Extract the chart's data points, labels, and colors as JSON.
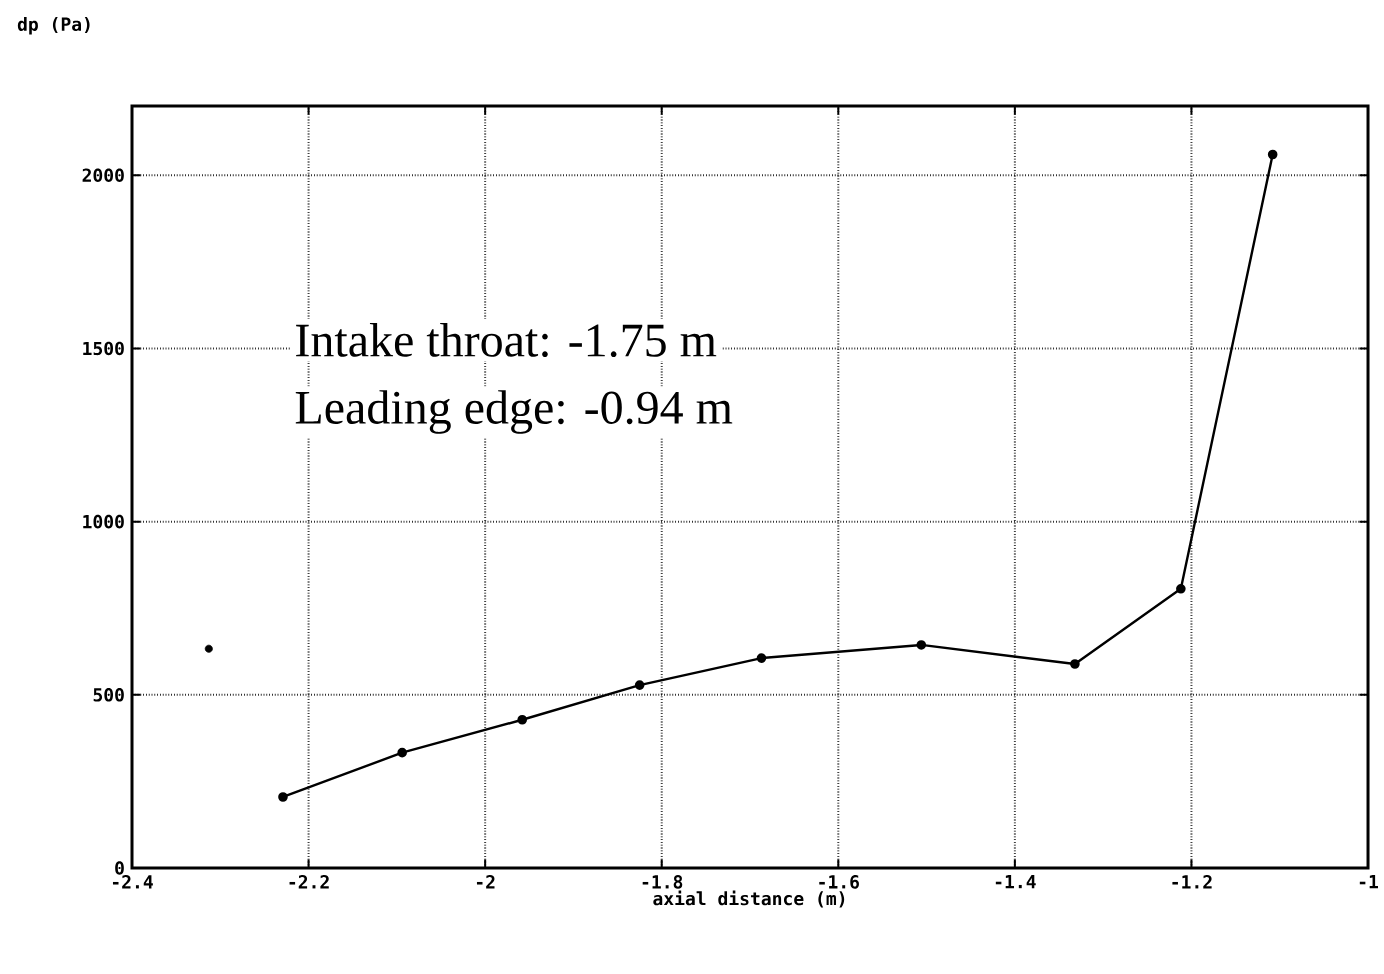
{
  "chart_data": {
    "type": "line",
    "xlabel": "axial distance (m)",
    "ylabel": "dp (Pa)",
    "annotations": [
      "Intake throat:     -1.75 m",
      "Leading edge:     -0.94 m"
    ],
    "series": [
      {
        "color": "#000000",
        "x": [
          -2.229,
          -2.094,
          -1.958,
          -1.825,
          -1.687,
          -1.506,
          -1.332,
          -1.212,
          -1.108
        ],
        "values": [
          205,
          333,
          428,
          528,
          606,
          644,
          589,
          806,
          2060
        ]
      },
      {
        "type": "scatter",
        "color": "#000000",
        "x": [
          -2.313
        ],
        "values": [
          633
        ]
      }
    ],
    "xlim": [
      -2.4,
      -1
    ],
    "ylim": [
      0,
      2200
    ],
    "xticks": [
      -2.4,
      -2.2,
      -2,
      -1.8,
      -1.6,
      -1.4,
      -1.2,
      -1
    ],
    "yticks": [
      0,
      500,
      1000,
      1500,
      2000
    ],
    "grid": true,
    "marker": "circle",
    "line_style": "solid"
  }
}
